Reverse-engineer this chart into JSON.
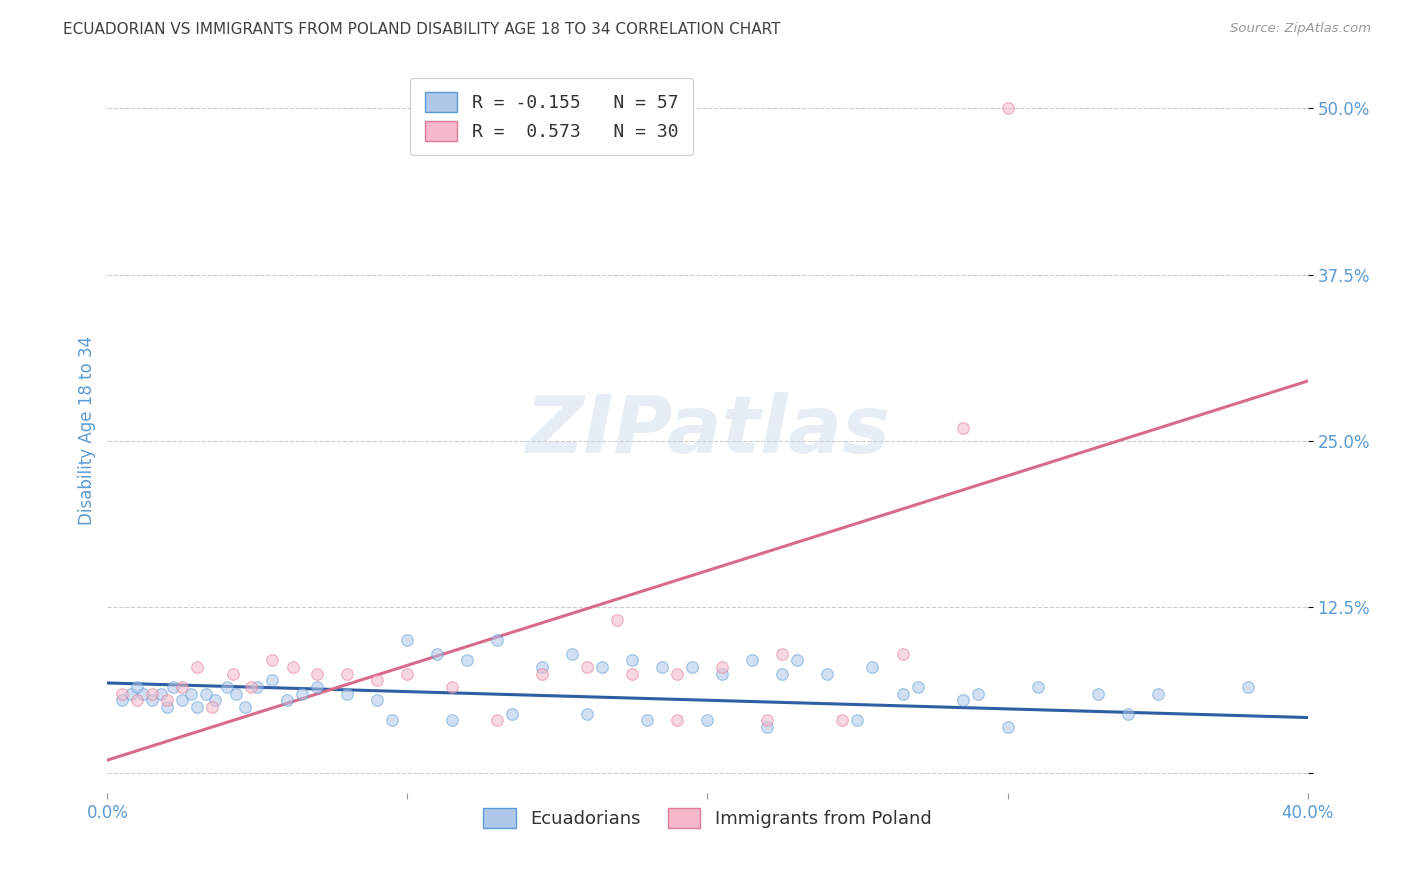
{
  "title": "ECUADORIAN VS IMMIGRANTS FROM POLAND DISABILITY AGE 18 TO 34 CORRELATION CHART",
  "source": "Source: ZipAtlas.com",
  "ylabel": "Disability Age 18 to 34",
  "xlim": [
    0.0,
    0.4
  ],
  "ylim": [
    -0.015,
    0.53
  ],
  "yticks": [
    0.0,
    0.125,
    0.25,
    0.375,
    0.5
  ],
  "ytick_labels": [
    "",
    "12.5%",
    "25.0%",
    "37.5%",
    "50.0%"
  ],
  "xticks": [
    0.0,
    0.1,
    0.2,
    0.3,
    0.4
  ],
  "xtick_labels": [
    "0.0%",
    "",
    "",
    "",
    "40.0%"
  ],
  "watermark": "ZIPatlas",
  "legend_entries": [
    {
      "label": "R = -0.155   N = 57",
      "color": "#aec6e8"
    },
    {
      "label": "R =  0.573   N = 30",
      "color": "#f4b8c8"
    }
  ],
  "legend_labels_bottom": [
    "Ecuadorians",
    "Immigrants from Poland"
  ],
  "blue_scatter_x": [
    0.005,
    0.008,
    0.01,
    0.012,
    0.015,
    0.018,
    0.02,
    0.022,
    0.025,
    0.028,
    0.03,
    0.033,
    0.036,
    0.04,
    0.043,
    0.046,
    0.05,
    0.055,
    0.06,
    0.065,
    0.07,
    0.08,
    0.09,
    0.1,
    0.11,
    0.12,
    0.13,
    0.145,
    0.155,
    0.165,
    0.175,
    0.185,
    0.195,
    0.205,
    0.215,
    0.225,
    0.24,
    0.255,
    0.27,
    0.29,
    0.31,
    0.33,
    0.35,
    0.38,
    0.095,
    0.115,
    0.135,
    0.16,
    0.18,
    0.2,
    0.22,
    0.25,
    0.3,
    0.34,
    0.23,
    0.265,
    0.285
  ],
  "blue_scatter_y": [
    0.055,
    0.06,
    0.065,
    0.06,
    0.055,
    0.06,
    0.05,
    0.065,
    0.055,
    0.06,
    0.05,
    0.06,
    0.055,
    0.065,
    0.06,
    0.05,
    0.065,
    0.07,
    0.055,
    0.06,
    0.065,
    0.06,
    0.055,
    0.1,
    0.09,
    0.085,
    0.1,
    0.08,
    0.09,
    0.08,
    0.085,
    0.08,
    0.08,
    0.075,
    0.085,
    0.075,
    0.075,
    0.08,
    0.065,
    0.06,
    0.065,
    0.06,
    0.06,
    0.065,
    0.04,
    0.04,
    0.045,
    0.045,
    0.04,
    0.04,
    0.035,
    0.04,
    0.035,
    0.045,
    0.085,
    0.06,
    0.055
  ],
  "pink_scatter_x": [
    0.005,
    0.01,
    0.015,
    0.02,
    0.025,
    0.03,
    0.035,
    0.042,
    0.048,
    0.055,
    0.062,
    0.07,
    0.08,
    0.09,
    0.1,
    0.115,
    0.13,
    0.145,
    0.16,
    0.175,
    0.19,
    0.205,
    0.225,
    0.245,
    0.265,
    0.285,
    0.17,
    0.19,
    0.22,
    0.3
  ],
  "pink_scatter_y": [
    0.06,
    0.055,
    0.06,
    0.055,
    0.065,
    0.08,
    0.05,
    0.075,
    0.065,
    0.085,
    0.08,
    0.075,
    0.075,
    0.07,
    0.075,
    0.065,
    0.04,
    0.075,
    0.08,
    0.075,
    0.075,
    0.08,
    0.09,
    0.04,
    0.09,
    0.26,
    0.115,
    0.04,
    0.04,
    0.5
  ],
  "blue_line_x": [
    0.0,
    0.4
  ],
  "blue_line_y": [
    0.068,
    0.042
  ],
  "pink_line_x": [
    0.0,
    0.4
  ],
  "pink_line_y": [
    0.01,
    0.295
  ],
  "scatter_size": 70,
  "scatter_alpha": 0.55,
  "blue_color": "#aec6e8",
  "blue_edge_color": "#5b9bd5",
  "pink_color": "#f4b8c8",
  "pink_edge_color": "#e07b96",
  "blue_line_color": "#2e5fa3",
  "pink_line_color": "#d96b8a",
  "grid_color": "#cccccc",
  "title_color": "#404040",
  "axis_label_color": "#5b9bd5",
  "tick_color": "#5b9bd5",
  "background_color": "#ffffff"
}
